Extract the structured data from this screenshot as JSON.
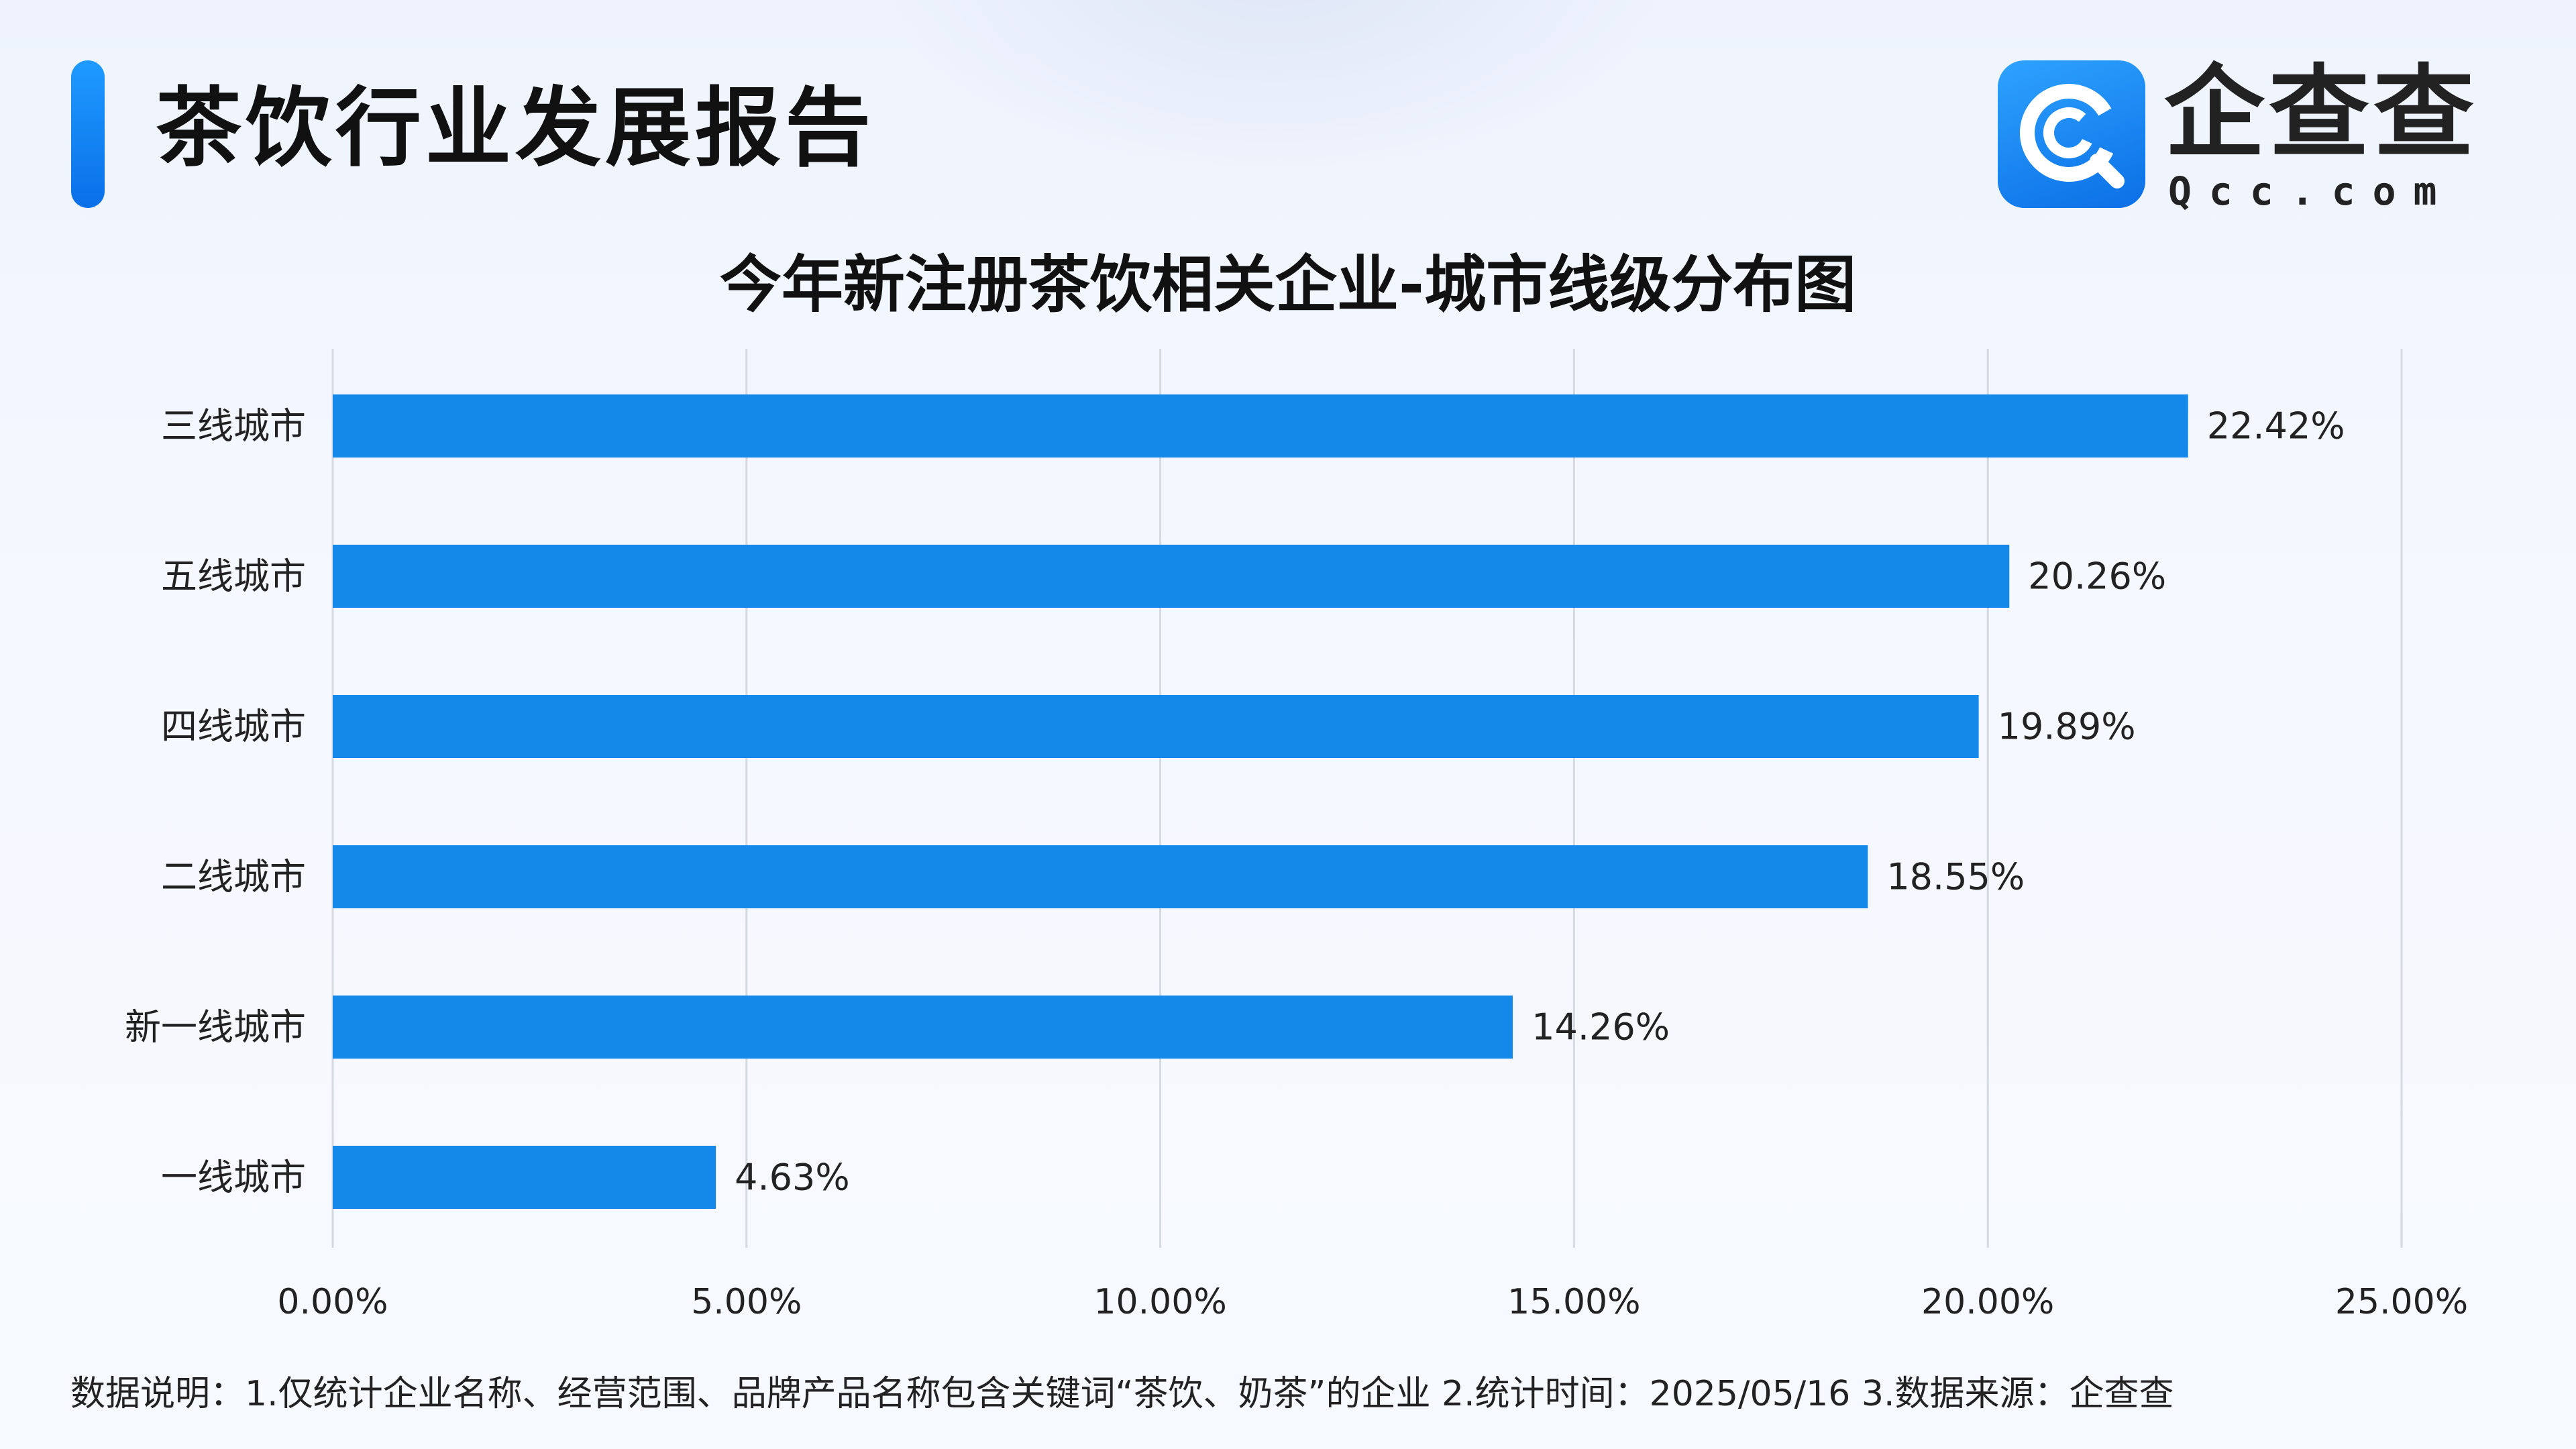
{
  "header": {
    "title": "茶饮行业发展报告",
    "logo_cn": "企查查",
    "logo_en": "Qcc.com"
  },
  "colors": {
    "accent": "#1589ea",
    "grid": "#d5d9e0"
  },
  "chart_data": {
    "type": "bar",
    "orientation": "horizontal",
    "title": "今年新注册茶饮相关企业-城市线级分布图",
    "categories": [
      "三线城市",
      "五线城市",
      "四线城市",
      "二线城市",
      "新一线城市",
      "一线城市"
    ],
    "values": [
      22.42,
      20.26,
      19.89,
      18.55,
      14.26,
      4.63
    ],
    "value_labels": [
      "22.42%",
      "20.26%",
      "19.89%",
      "18.55%",
      "14.26%",
      "4.63%"
    ],
    "xlim": [
      0,
      25
    ],
    "x_ticks": [
      0,
      5,
      10,
      15,
      20,
      25
    ],
    "x_tick_labels": [
      "0.00%",
      "5.00%",
      "10.00%",
      "15.00%",
      "20.00%",
      "25.00%"
    ],
    "grid": true,
    "legend": "none"
  },
  "footnote": "数据说明：1.仅统计企业名称、经营范围、品牌产品名称包含关键词“茶饮、奶茶”的企业   2.统计时间：2025/05/16    3.数据来源：企查查"
}
